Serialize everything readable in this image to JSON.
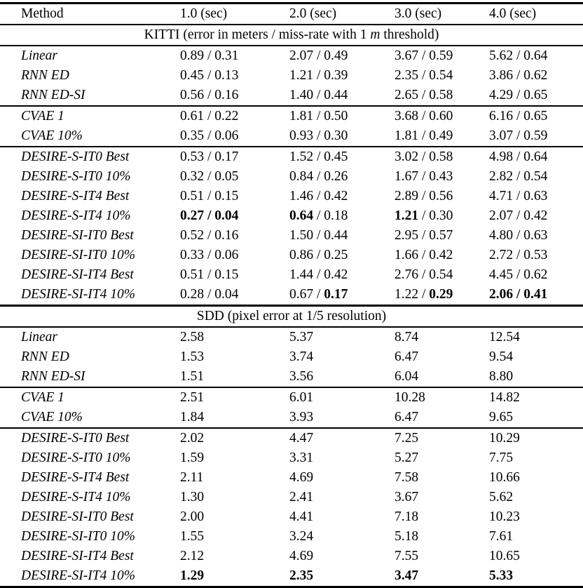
{
  "colors": {
    "background": "#ffffff",
    "text": "#000000",
    "rule": "#000000"
  },
  "table": {
    "columns": [
      "Method",
      "1.0 (sec)",
      "2.0 (sec)",
      "3.0 (sec)",
      "4.0 (sec)"
    ],
    "sections": [
      {
        "name": "kitti",
        "header": [
          {
            "t": "KITTI (error in meters / miss-rate with 1 "
          },
          {
            "t": "m",
            "i": true
          },
          {
            "t": " threshold)"
          }
        ],
        "groups": [
          [
            {
              "method": "Linear",
              "values": [
                "0.89 / 0.31",
                "2.07 / 0.49",
                "3.67 / 0.59",
                "5.62 / 0.64"
              ]
            },
            {
              "method": "RNN ED",
              "values": [
                "0.45 / 0.13",
                "1.21 / 0.39",
                "2.35 / 0.54",
                "3.86 / 0.62"
              ]
            },
            {
              "method": "RNN ED-SI",
              "values": [
                "0.56 / 0.16",
                "1.40 / 0.44",
                "2.65 / 0.58",
                "4.29 / 0.65"
              ]
            }
          ],
          [
            {
              "method": "CVAE 1",
              "values": [
                "0.61 / 0.22",
                "1.81 / 0.50",
                "3.68 / 0.60",
                "6.16 / 0.65"
              ]
            },
            {
              "method": "CVAE 10%",
              "values": [
                "0.35 / 0.06",
                "0.93 / 0.30",
                "1.81 / 0.49",
                "3.07 / 0.59"
              ]
            }
          ],
          [
            {
              "method": "DESIRE-S-IT0 Best",
              "values": [
                "0.53 / 0.17",
                "1.52 / 0.45",
                "3.02 / 0.58",
                "4.98 / 0.64"
              ]
            },
            {
              "method": "DESIRE-S-IT0 10%",
              "values": [
                "0.32 / 0.05",
                "0.84 / 0.26",
                "1.67 / 0.43",
                "2.82 / 0.54"
              ]
            },
            {
              "method": "DESIRE-S-IT4 Best",
              "values": [
                "0.51 / 0.15",
                "1.46 / 0.42",
                "2.89 / 0.56",
                "4.71 / 0.63"
              ]
            },
            {
              "method": "DESIRE-S-IT4 10%",
              "values": [
                [
                  {
                    "t": "0.27 / 0.04",
                    "b": true
                  }
                ],
                [
                  {
                    "t": "0.64",
                    "b": true
                  },
                  {
                    "t": " / 0.18"
                  }
                ],
                [
                  {
                    "t": "1.21",
                    "b": true
                  },
                  {
                    "t": " / 0.30"
                  }
                ],
                "2.07 / 0.42"
              ]
            },
            {
              "method": "DESIRE-SI-IT0 Best",
              "values": [
                "0.52 / 0.16",
                "1.50 / 0.44",
                "2.95 / 0.57",
                "4.80 / 0.63"
              ]
            },
            {
              "method": "DESIRE-SI-IT0 10%",
              "values": [
                "0.33 / 0.06",
                "0.86 / 0.25",
                "1.66 / 0.42",
                "2.72 / 0.53"
              ]
            },
            {
              "method": "DESIRE-SI-IT4 Best",
              "values": [
                "0.51 / 0.15",
                "1.44 / 0.42",
                "2.76 / 0.54",
                "4.45 / 0.62"
              ]
            },
            {
              "method": "DESIRE-SI-IT4 10%",
              "values": [
                "0.28 / 0.04",
                [
                  {
                    "t": "0.67 / "
                  },
                  {
                    "t": "0.17",
                    "b": true
                  }
                ],
                [
                  {
                    "t": "1.22 / "
                  },
                  {
                    "t": "0.29",
                    "b": true
                  }
                ],
                [
                  {
                    "t": "2.06 / 0.41",
                    "b": true
                  }
                ]
              ]
            }
          ]
        ]
      },
      {
        "name": "sdd",
        "header": [
          {
            "t": "SDD (pixel error at 1/5 resolution)"
          }
        ],
        "groups": [
          [
            {
              "method": "Linear",
              "values": [
                "2.58",
                "5.37",
                "8.74",
                "12.54"
              ]
            },
            {
              "method": "RNN ED",
              "values": [
                "1.53",
                "3.74",
                "6.47",
                "9.54"
              ]
            },
            {
              "method": "RNN ED-SI",
              "values": [
                "1.51",
                "3.56",
                "6.04",
                "8.80"
              ]
            }
          ],
          [
            {
              "method": "CVAE 1",
              "values": [
                "2.51",
                "6.01",
                "10.28",
                "14.82"
              ]
            },
            {
              "method": "CVAE 10%",
              "values": [
                "1.84",
                "3.93",
                "6.47",
                "9.65"
              ]
            }
          ],
          [
            {
              "method": "DESIRE-S-IT0 Best",
              "values": [
                "2.02",
                "4.47",
                "7.25",
                "10.29"
              ]
            },
            {
              "method": "DESIRE-S-IT0 10%",
              "values": [
                "1.59",
                "3.31",
                "5.27",
                "7.75"
              ]
            },
            {
              "method": "DESIRE-S-IT4 Best",
              "values": [
                "2.11",
                "4.69",
                "7.58",
                "10.66"
              ]
            },
            {
              "method": "DESIRE-S-IT4 10%",
              "values": [
                "1.30",
                "2.41",
                "3.67",
                "5.62"
              ]
            },
            {
              "method": "DESIRE-SI-IT0 Best",
              "values": [
                "2.00",
                "4.41",
                "7.18",
                "10.23"
              ]
            },
            {
              "method": "DESIRE-SI-IT0 10%",
              "values": [
                "1.55",
                "3.24",
                "5.18",
                "7.61"
              ]
            },
            {
              "method": "DESIRE-SI-IT4 Best",
              "values": [
                "2.12",
                "4.69",
                "7.55",
                "10.65"
              ]
            },
            {
              "method": "DESIRE-SI-IT4 10%",
              "values": [
                [
                  {
                    "t": "1.29",
                    "b": true
                  }
                ],
                [
                  {
                    "t": "2.35",
                    "b": true
                  }
                ],
                [
                  {
                    "t": "3.47",
                    "b": true
                  }
                ],
                [
                  {
                    "t": "5.33",
                    "b": true
                  }
                ]
              ]
            }
          ]
        ]
      }
    ]
  }
}
